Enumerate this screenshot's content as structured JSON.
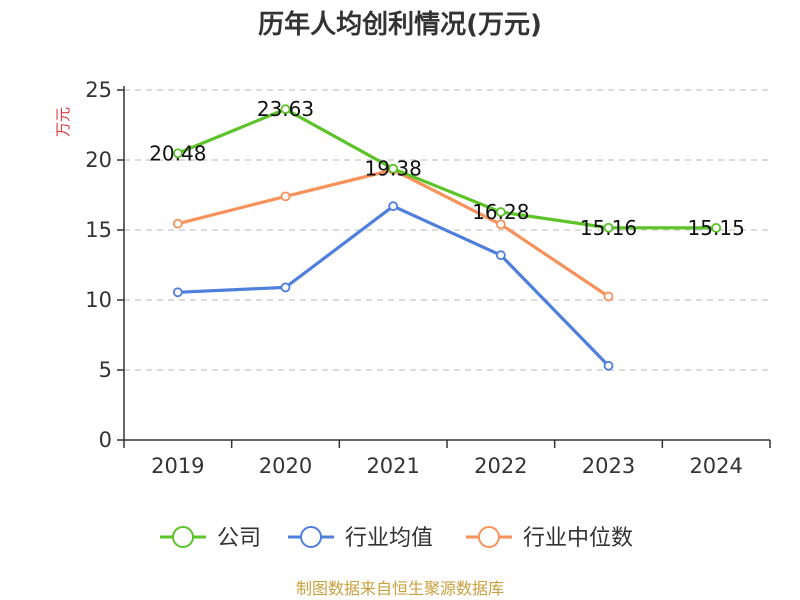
{
  "chart_data": {
    "type": "line",
    "title": "历年人均创利情况(万元)",
    "ylabel": "万元",
    "xlabel": "",
    "categories": [
      "2019",
      "2020",
      "2021",
      "2022",
      "2023",
      "2024"
    ],
    "ylim": [
      0,
      25
    ],
    "yticks": [
      0,
      5,
      10,
      15,
      20,
      25
    ],
    "grid": true,
    "legend": "bottom",
    "series": [
      {
        "name": "公司",
        "color": "#5cc329",
        "values": [
          20.48,
          23.63,
          19.38,
          16.28,
          15.16,
          15.15
        ],
        "labels": [
          "20.48",
          "23.63",
          "19.38",
          "16.28",
          "15.16",
          "15.15"
        ]
      },
      {
        "name": "行业均值",
        "color": "#4f7fdc",
        "values": [
          10.55,
          10.9,
          16.7,
          13.2,
          5.3,
          null
        ],
        "labels": []
      },
      {
        "name": "行业中位数",
        "color": "#f7925a",
        "values": [
          15.45,
          17.4,
          19.3,
          15.4,
          10.25,
          null
        ],
        "labels": []
      }
    ]
  },
  "footer": {
    "source": "制图数据来自恒生聚源数据库"
  }
}
